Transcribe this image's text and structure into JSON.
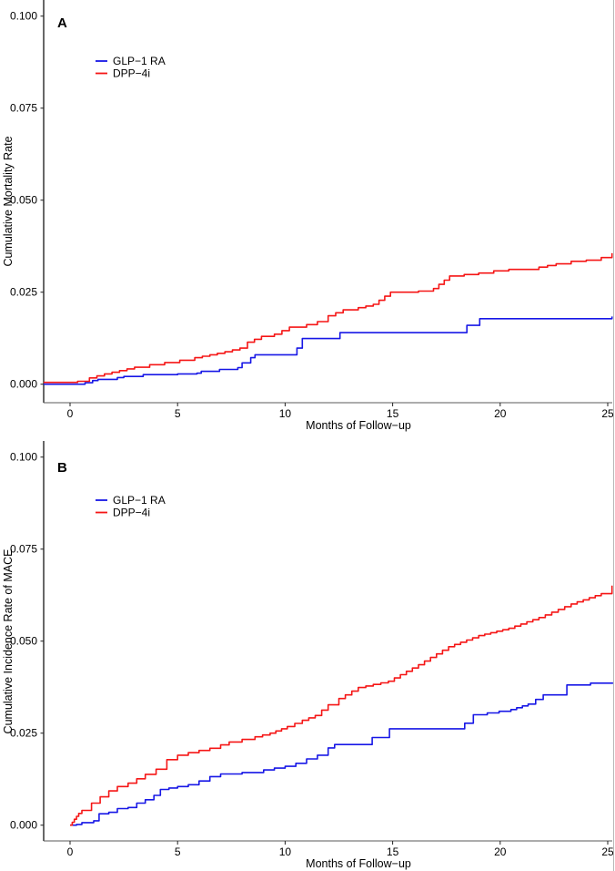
{
  "figure": {
    "background": "#ffffff",
    "right_border_color": "#b8b8b8"
  },
  "chart_data": [
    {
      "panel_label": "A",
      "type": "line",
      "subtype": "kaplan-meier-step",
      "title": "",
      "xlabel": "Months of Follow−up",
      "ylabel": "Cumulative Mortality Rate",
      "xlim": [
        -1.25,
        25.3
      ],
      "ylim": [
        0,
        0.104
      ],
      "grid": false,
      "legend_position": "upper-left-inside",
      "x_ticks": [
        0,
        5,
        10,
        15,
        20,
        25
      ],
      "x_tick_labels": [
        "0",
        "5",
        "10",
        "15",
        "20",
        "25"
      ],
      "y_ticks": [
        0,
        0.025,
        0.05,
        0.075,
        0.1
      ],
      "y_tick_labels": [
        "0.000",
        "0.025",
        "0.050",
        "0.075",
        "0.100"
      ],
      "series": [
        {
          "name": "GLP−1 RA",
          "color": "#1717e6",
          "points": [
            [
              -1.23,
              0
            ],
            [
              0.7,
              0.0004
            ],
            [
              1.05,
              0.001
            ],
            [
              1.3,
              0.0013
            ],
            [
              2.2,
              0.0018
            ],
            [
              2.5,
              0.0021
            ],
            [
              3.4,
              0.0026
            ],
            [
              5.0,
              0.0028
            ],
            [
              5.9,
              0.003
            ],
            [
              6.1,
              0.0035
            ],
            [
              7.8,
              0.0045
            ],
            [
              8.0,
              0.0058
            ],
            [
              8.4,
              0.0072
            ],
            [
              8.6,
              0.008
            ],
            [
              10.4,
              0.008
            ],
            [
              10.55,
              0.0098
            ],
            [
              10.8,
              0.0124
            ],
            [
              12.4,
              0.0124
            ],
            [
              12.55,
              0.014
            ],
            [
              18.35,
              0.014
            ],
            [
              18.45,
              0.016
            ],
            [
              18.95,
              0.016
            ],
            [
              19.05,
              0.0178
            ],
            [
              25.0,
              0.0178
            ],
            [
              25.2,
              0.0184
            ]
          ]
        },
        {
          "name": "DPP−4i",
          "color": "#f51616",
          "points": [
            [
              -1.23,
              0.0005
            ],
            [
              0.35,
              0.0008
            ],
            [
              0.9,
              0.0017
            ],
            [
              1.6,
              0.0028
            ],
            [
              2.3,
              0.0037
            ],
            [
              3.0,
              0.0046
            ],
            [
              3.7,
              0.0053
            ],
            [
              4.4,
              0.0059
            ],
            [
              5.1,
              0.0065
            ],
            [
              5.8,
              0.0072
            ],
            [
              6.5,
              0.008
            ],
            [
              7.2,
              0.0088
            ],
            [
              7.9,
              0.0098
            ],
            [
              8.25,
              0.0114
            ],
            [
              8.9,
              0.013
            ],
            [
              9.5,
              0.0136
            ],
            [
              10.2,
              0.0155
            ],
            [
              11.0,
              0.0162
            ],
            [
              11.5,
              0.017
            ],
            [
              12.0,
              0.0186
            ],
            [
              12.7,
              0.0202
            ],
            [
              13.4,
              0.0208
            ],
            [
              14.1,
              0.0217
            ],
            [
              14.9,
              0.025
            ],
            [
              16.2,
              0.0253
            ],
            [
              16.9,
              0.026
            ],
            [
              17.65,
              0.0294
            ],
            [
              19.0,
              0.0302
            ],
            [
              19.7,
              0.0308
            ],
            [
              20.4,
              0.0312
            ],
            [
              21.8,
              0.0318
            ],
            [
              22.6,
              0.0327
            ],
            [
              23.3,
              0.0334
            ],
            [
              24.0,
              0.0337
            ],
            [
              24.7,
              0.0344
            ],
            [
              25.2,
              0.0356
            ]
          ]
        }
      ]
    },
    {
      "panel_label": "B",
      "type": "line",
      "subtype": "kaplan-meier-step",
      "title": "",
      "xlabel": "Months of Follow−up",
      "ylabel": "Cumulative Incidence Rate of MACE",
      "xlim": [
        -1.25,
        25.3
      ],
      "ylim": [
        0,
        0.104
      ],
      "grid": false,
      "legend_position": "upper-left-inside",
      "x_ticks": [
        0,
        5,
        10,
        15,
        20,
        25
      ],
      "x_tick_labels": [
        "0",
        "5",
        "10",
        "15",
        "20",
        "25"
      ],
      "y_ticks": [
        0,
        0.025,
        0.05,
        0.075,
        0.1
      ],
      "y_tick_labels": [
        "0.000",
        "0.025",
        "0.050",
        "0.075",
        "0.100"
      ],
      "series": [
        {
          "name": "GLP−1 RA",
          "color": "#1717e6",
          "points": [
            [
              0,
              0
            ],
            [
              0.3,
              0.0002
            ],
            [
              0.55,
              0.0007
            ],
            [
              1.1,
              0.0012
            ],
            [
              1.35,
              0.0031
            ],
            [
              1.8,
              0.0035
            ],
            [
              2.2,
              0.0045
            ],
            [
              2.7,
              0.0048
            ],
            [
              3.1,
              0.006
            ],
            [
              3.5,
              0.0069
            ],
            [
              3.9,
              0.0081
            ],
            [
              4.2,
              0.0097
            ],
            [
              5.0,
              0.0105
            ],
            [
              5.5,
              0.011
            ],
            [
              6.0,
              0.012
            ],
            [
              6.5,
              0.0132
            ],
            [
              7.0,
              0.0139
            ],
            [
              8.0,
              0.0143
            ],
            [
              9.0,
              0.015
            ],
            [
              9.5,
              0.0155
            ],
            [
              10.0,
              0.016
            ],
            [
              10.5,
              0.0168
            ],
            [
              11.0,
              0.018
            ],
            [
              11.5,
              0.019
            ],
            [
              12.0,
              0.021
            ],
            [
              12.3,
              0.0219
            ],
            [
              13.95,
              0.0219
            ],
            [
              14.05,
              0.0238
            ],
            [
              14.75,
              0.0238
            ],
            [
              14.85,
              0.0262
            ],
            [
              18.25,
              0.0262
            ],
            [
              18.35,
              0.0277
            ],
            [
              18.65,
              0.0277
            ],
            [
              18.75,
              0.03
            ],
            [
              19.4,
              0.0305
            ],
            [
              20.5,
              0.0314
            ],
            [
              21.3,
              0.0329
            ],
            [
              22.0,
              0.0354
            ],
            [
              23.0,
              0.0354
            ],
            [
              23.1,
              0.0381
            ],
            [
              24.2,
              0.0386
            ],
            [
              25.25,
              0.0386
            ]
          ]
        },
        {
          "name": "DPP−4i",
          "color": "#f51616",
          "points": [
            [
              0,
              0
            ],
            [
              0.1,
              0.0008
            ],
            [
              0.2,
              0.0016
            ],
            [
              0.3,
              0.0024
            ],
            [
              0.4,
              0.0032
            ],
            [
              0.55,
              0.004
            ],
            [
              1.0,
              0.006
            ],
            [
              1.4,
              0.0077
            ],
            [
              1.8,
              0.0093
            ],
            [
              2.2,
              0.0105
            ],
            [
              2.7,
              0.0114
            ],
            [
              3.1,
              0.0126
            ],
            [
              3.5,
              0.0138
            ],
            [
              4.0,
              0.0152
            ],
            [
              4.5,
              0.0178
            ],
            [
              5.0,
              0.019
            ],
            [
              5.5,
              0.0197
            ],
            [
              6.0,
              0.0203
            ],
            [
              6.5,
              0.0209
            ],
            [
              7.0,
              0.0218
            ],
            [
              7.4,
              0.0226
            ],
            [
              8.0,
              0.0233
            ],
            [
              8.6,
              0.024
            ],
            [
              9.3,
              0.025
            ],
            [
              10.1,
              0.0268
            ],
            [
              10.8,
              0.0285
            ],
            [
              11.4,
              0.0298
            ],
            [
              12.0,
              0.0327
            ],
            [
              12.5,
              0.0344
            ],
            [
              13.4,
              0.0374
            ],
            [
              14.8,
              0.0391
            ],
            [
              16.2,
              0.0436
            ],
            [
              17.6,
              0.0485
            ],
            [
              19.0,
              0.0515
            ],
            [
              20.4,
              0.0535
            ],
            [
              21.8,
              0.0564
            ],
            [
              23.3,
              0.0601
            ],
            [
              24.7,
              0.0629
            ],
            [
              25.2,
              0.0651
            ]
          ]
        }
      ]
    }
  ]
}
